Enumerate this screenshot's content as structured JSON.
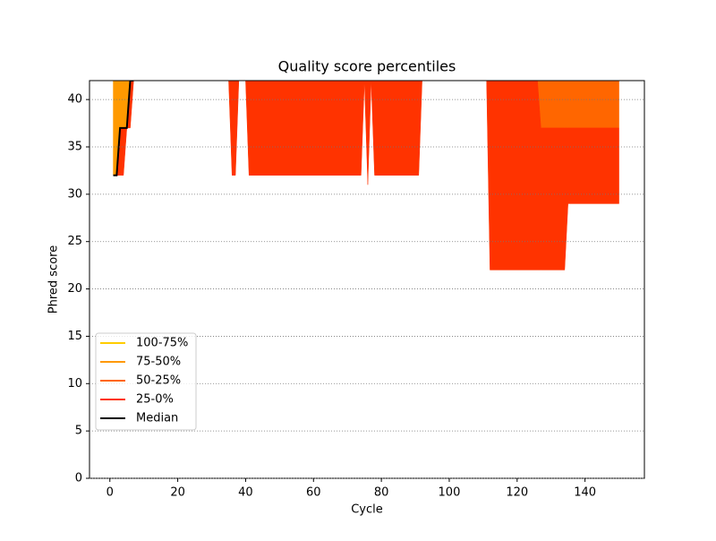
{
  "chart_data": {
    "type": "area-band",
    "title": "Quality score percentiles",
    "x_label": "Cycle",
    "y_label": "Phred score",
    "x": [
      1,
      2,
      3,
      4,
      5,
      6,
      7,
      35,
      36,
      37,
      38,
      40,
      41,
      74,
      75,
      76,
      77,
      78,
      91,
      92,
      111,
      112,
      126,
      127,
      134,
      135,
      150
    ],
    "series": [
      {
        "name": "100-75%",
        "color": "#ffcc00",
        "values": [
          42,
          42,
          42,
          42,
          42,
          42,
          42,
          42,
          42,
          42,
          42,
          42,
          42,
          42,
          42,
          42,
          42,
          42,
          42,
          42,
          42,
          42,
          42,
          42,
          42,
          42,
          42
        ]
      },
      {
        "name": "75-50%",
        "color": "#ff9900",
        "values": [
          32,
          32,
          37,
          37,
          37,
          42,
          42,
          42,
          42,
          42,
          42,
          42,
          42,
          42,
          42,
          42,
          42,
          42,
          42,
          42,
          42,
          42,
          42,
          42,
          42,
          42,
          42
        ]
      },
      {
        "name": "50-25%",
        "color": "#ff6600",
        "values": [
          32,
          32,
          37,
          37,
          37,
          42,
          42,
          42,
          42,
          42,
          42,
          42,
          42,
          42,
          42,
          42,
          42,
          42,
          42,
          42,
          42,
          42,
          42,
          37,
          37,
          37,
          37
        ]
      },
      {
        "name": "25-0%",
        "color": "#ff3300",
        "values": [
          32,
          32,
          32,
          32,
          37,
          37,
          42,
          42,
          32,
          32,
          42,
          42,
          32,
          32,
          42,
          31,
          42,
          32,
          32,
          42,
          42,
          22,
          22,
          22,
          22,
          29,
          29
        ]
      },
      {
        "name": "Median",
        "color": "#000000",
        "values": [
          32,
          32,
          37,
          37,
          37,
          42,
          42,
          null,
          null,
          null,
          null,
          null,
          null,
          null,
          null,
          null,
          null,
          null,
          null,
          null,
          null,
          null,
          null,
          null,
          null,
          null,
          null
        ]
      }
    ],
    "xlim": [
      -6,
      157.5
    ],
    "ylim": [
      0,
      42
    ],
    "xticks": [
      0,
      20,
      40,
      60,
      80,
      100,
      120,
      140
    ],
    "yticks": [
      0,
      5,
      10,
      15,
      20,
      25,
      30,
      35,
      40
    ],
    "grid": true,
    "legend": "lower left"
  }
}
